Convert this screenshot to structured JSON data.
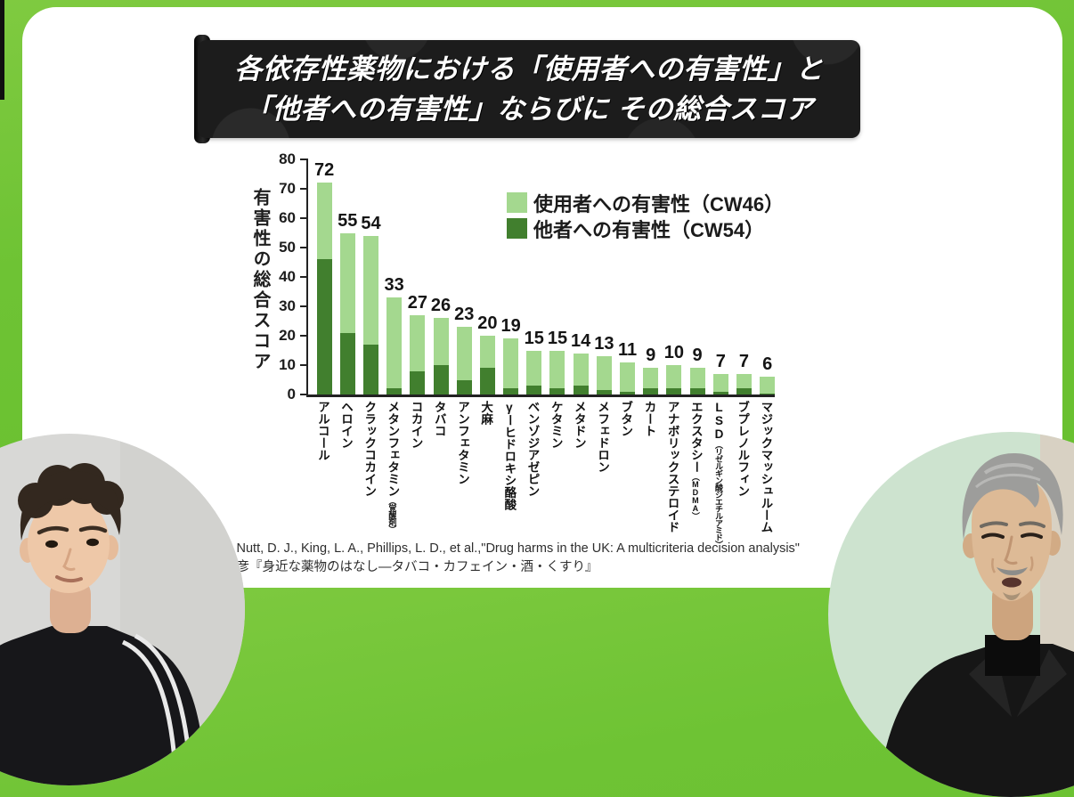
{
  "frame": {
    "accent_green": "#6ec334",
    "panel_color": "#ffffff"
  },
  "banner": {
    "title_line1": "各依存性薬物における「使用者への有害性」と",
    "title_line2": "「他者への有害性」ならびに その総合スコア",
    "bg_color": "#1c1c1c",
    "text_color": "#ffffff"
  },
  "chart_data": {
    "type": "bar",
    "stacked": true,
    "ylabel": "有害性の総合スコア",
    "xlabel": "",
    "ylim": [
      0,
      80
    ],
    "yticks": [
      0,
      10,
      20,
      30,
      40,
      50,
      60,
      70,
      80
    ],
    "grid": false,
    "legend_position": "upper-right-inside",
    "legend": [
      {
        "label": "使用者への有害性（CW46）",
        "series": "harm_to_users",
        "color": "#a4d88f"
      },
      {
        "label": "他者への有害性（CW54）",
        "series": "harm_to_others",
        "color": "#417f2e"
      }
    ],
    "value_labels": "total shown above each bar",
    "categories": [
      {
        "label": "アルコール",
        "sub": "",
        "total": 72,
        "harm_to_others": 46,
        "harm_to_users": 26
      },
      {
        "label": "ヘロイン",
        "sub": "",
        "total": 55,
        "harm_to_others": 21,
        "harm_to_users": 34
      },
      {
        "label": "クラックコカイン",
        "sub": "",
        "total": 54,
        "harm_to_others": 17,
        "harm_to_users": 37
      },
      {
        "label": "メタンフェタミン",
        "sub": "（覚醒剤）",
        "total": 33,
        "harm_to_others": 2,
        "harm_to_users": 31
      },
      {
        "label": "コカイン",
        "sub": "",
        "total": 27,
        "harm_to_others": 8,
        "harm_to_users": 19
      },
      {
        "label": "タバコ",
        "sub": "",
        "total": 26,
        "harm_to_others": 10,
        "harm_to_users": 16
      },
      {
        "label": "アンフェタミン",
        "sub": "",
        "total": 23,
        "harm_to_others": 5,
        "harm_to_users": 18
      },
      {
        "label": "大麻",
        "sub": "",
        "total": 20,
        "harm_to_others": 9,
        "harm_to_users": 11
      },
      {
        "label": "γーヒドロキシ酪酸",
        "sub": "",
        "total": 19,
        "harm_to_others": 2,
        "harm_to_users": 17
      },
      {
        "label": "ベンゾジアゼピン",
        "sub": "",
        "total": 15,
        "harm_to_others": 3,
        "harm_to_users": 12
      },
      {
        "label": "ケタミン",
        "sub": "",
        "total": 15,
        "harm_to_others": 2,
        "harm_to_users": 13
      },
      {
        "label": "メタドン",
        "sub": "",
        "total": 14,
        "harm_to_others": 3,
        "harm_to_users": 11
      },
      {
        "label": "メフェドロン",
        "sub": "",
        "total": 13,
        "harm_to_others": 1.5,
        "harm_to_users": 11.5
      },
      {
        "label": "ブタン",
        "sub": "",
        "total": 11,
        "harm_to_others": 1,
        "harm_to_users": 10
      },
      {
        "label": "カート",
        "sub": "",
        "total": 9,
        "harm_to_others": 2,
        "harm_to_users": 7
      },
      {
        "label": "アナボリックステロイド",
        "sub": "",
        "total": 10,
        "harm_to_others": 2,
        "harm_to_users": 8
      },
      {
        "label": "エクスタシー",
        "sub": "（MDMA）",
        "total": 9,
        "harm_to_others": 2,
        "harm_to_users": 7
      },
      {
        "label": "LSD",
        "sub": "（リゼルギン酸ジエチルアミド）",
        "total": 7,
        "harm_to_others": 1,
        "harm_to_users": 6
      },
      {
        "label": "ブプレノルフィン",
        "sub": "",
        "total": 7,
        "harm_to_others": 2,
        "harm_to_users": 5
      },
      {
        "label": "マジックマッシュルーム",
        "sub": "",
        "total": 6,
        "harm_to_others": 0.4,
        "harm_to_users": 5.6
      }
    ]
  },
  "citation": {
    "line1": "参照：Nutt, D. J., King, L. A., Phillips, L. D., et al.,\"Drug harms in the UK: A multicriteria decision analysis\"",
    "line2": "松本俊彦『身近な薬物のはなし―タバコ・カフェイン・酒・くすり』"
  },
  "participants": [
    {
      "position": "bottom-left",
      "description": "young man with dark curly hair, black track jacket with white stripes, gray background"
    },
    {
      "position": "bottom-right",
      "description": "older man with swept-back gray hair and mustache, black blazer and turtleneck, mint-green and beige background"
    }
  ]
}
